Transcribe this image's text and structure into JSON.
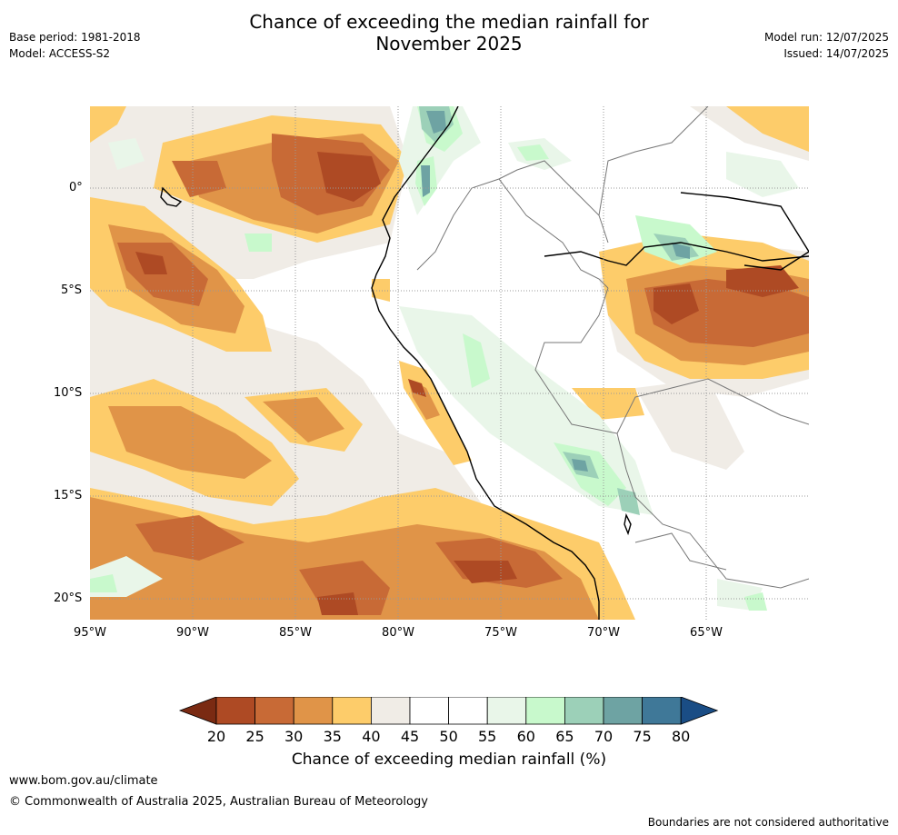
{
  "header": {
    "title_line1": "Chance of exceeding the median rainfall for",
    "title_line2": "November 2025",
    "base_period": "Base period: 1981-2018",
    "model": "Model: ACCESS-S2",
    "model_run": "Model run: 12/07/2025",
    "issued": "Issued: 14/07/2025"
  },
  "map": {
    "lat_labels": [
      "0°",
      "5°S",
      "10°S",
      "15°S",
      "20°S"
    ],
    "lon_labels": [
      "95°W",
      "90°W",
      "85°W",
      "80°W",
      "75°W",
      "70°W",
      "65°W"
    ],
    "lon_range": [
      -95,
      -60
    ],
    "lat_range": [
      -21,
      4
    ]
  },
  "legend": {
    "ticks": [
      "20",
      "25",
      "30",
      "35",
      "40",
      "45",
      "50",
      "55",
      "60",
      "65",
      "70",
      "75",
      "80"
    ],
    "colors": [
      "#7a2a12",
      "#ae4a24",
      "#c86a36",
      "#e09448",
      "#fdcc6a",
      "#f0ece6",
      "#ffffff",
      "#ffffff",
      "#e9f6e9",
      "#c8f9cc",
      "#9cd0b8",
      "#6ea3a3",
      "#3f7898",
      "#1a4d85"
    ],
    "label": "Chance of exceeding median rainfall (%)"
  },
  "footer": {
    "url": "www.bom.gov.au/climate",
    "copyright": "© Commonwealth of Australia 2025, Australian Bureau of Meteorology",
    "disclaimer": "Boundaries are not considered authoritative"
  }
}
